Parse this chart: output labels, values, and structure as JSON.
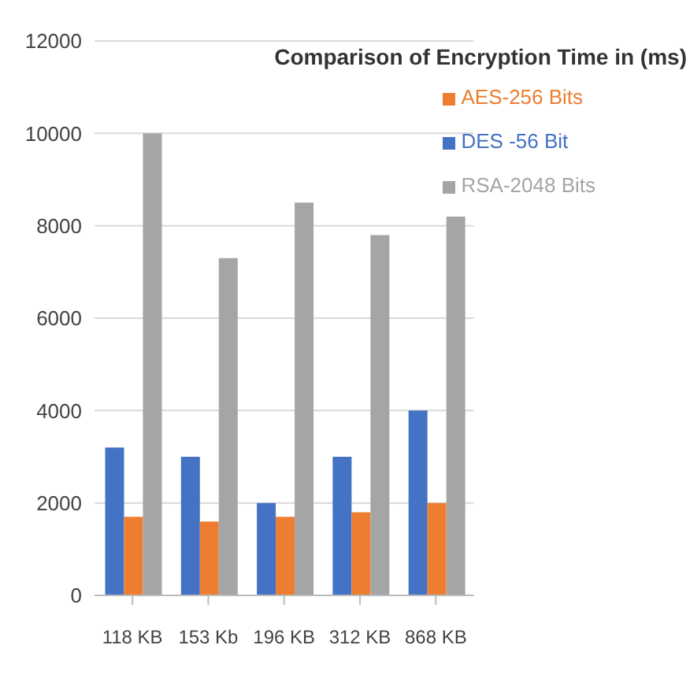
{
  "chart_data": {
    "type": "bar",
    "title": "Comparison of Encryption Time in (ms)",
    "categories": [
      "118 KB",
      "153 Kb",
      "196 KB",
      "312 KB",
      "868 KB"
    ],
    "series": [
      {
        "name": "DES -56 Bit",
        "color": "#4472c4",
        "values": [
          3200,
          3000,
          2000,
          3000,
          4000
        ]
      },
      {
        "name": "AES-256 Bits",
        "color": "#ed7d31",
        "values": [
          1700,
          1600,
          1700,
          1800,
          2000
        ]
      },
      {
        "name": "RSA-2048 Bits",
        "color": "#a5a5a5",
        "values": [
          10000,
          7300,
          8500,
          7800,
          8200
        ]
      }
    ],
    "ylim": [
      0,
      12000
    ],
    "yticks": [
      0,
      2000,
      4000,
      6000,
      8000,
      10000,
      12000
    ],
    "grid": "y",
    "legend": "top right"
  }
}
